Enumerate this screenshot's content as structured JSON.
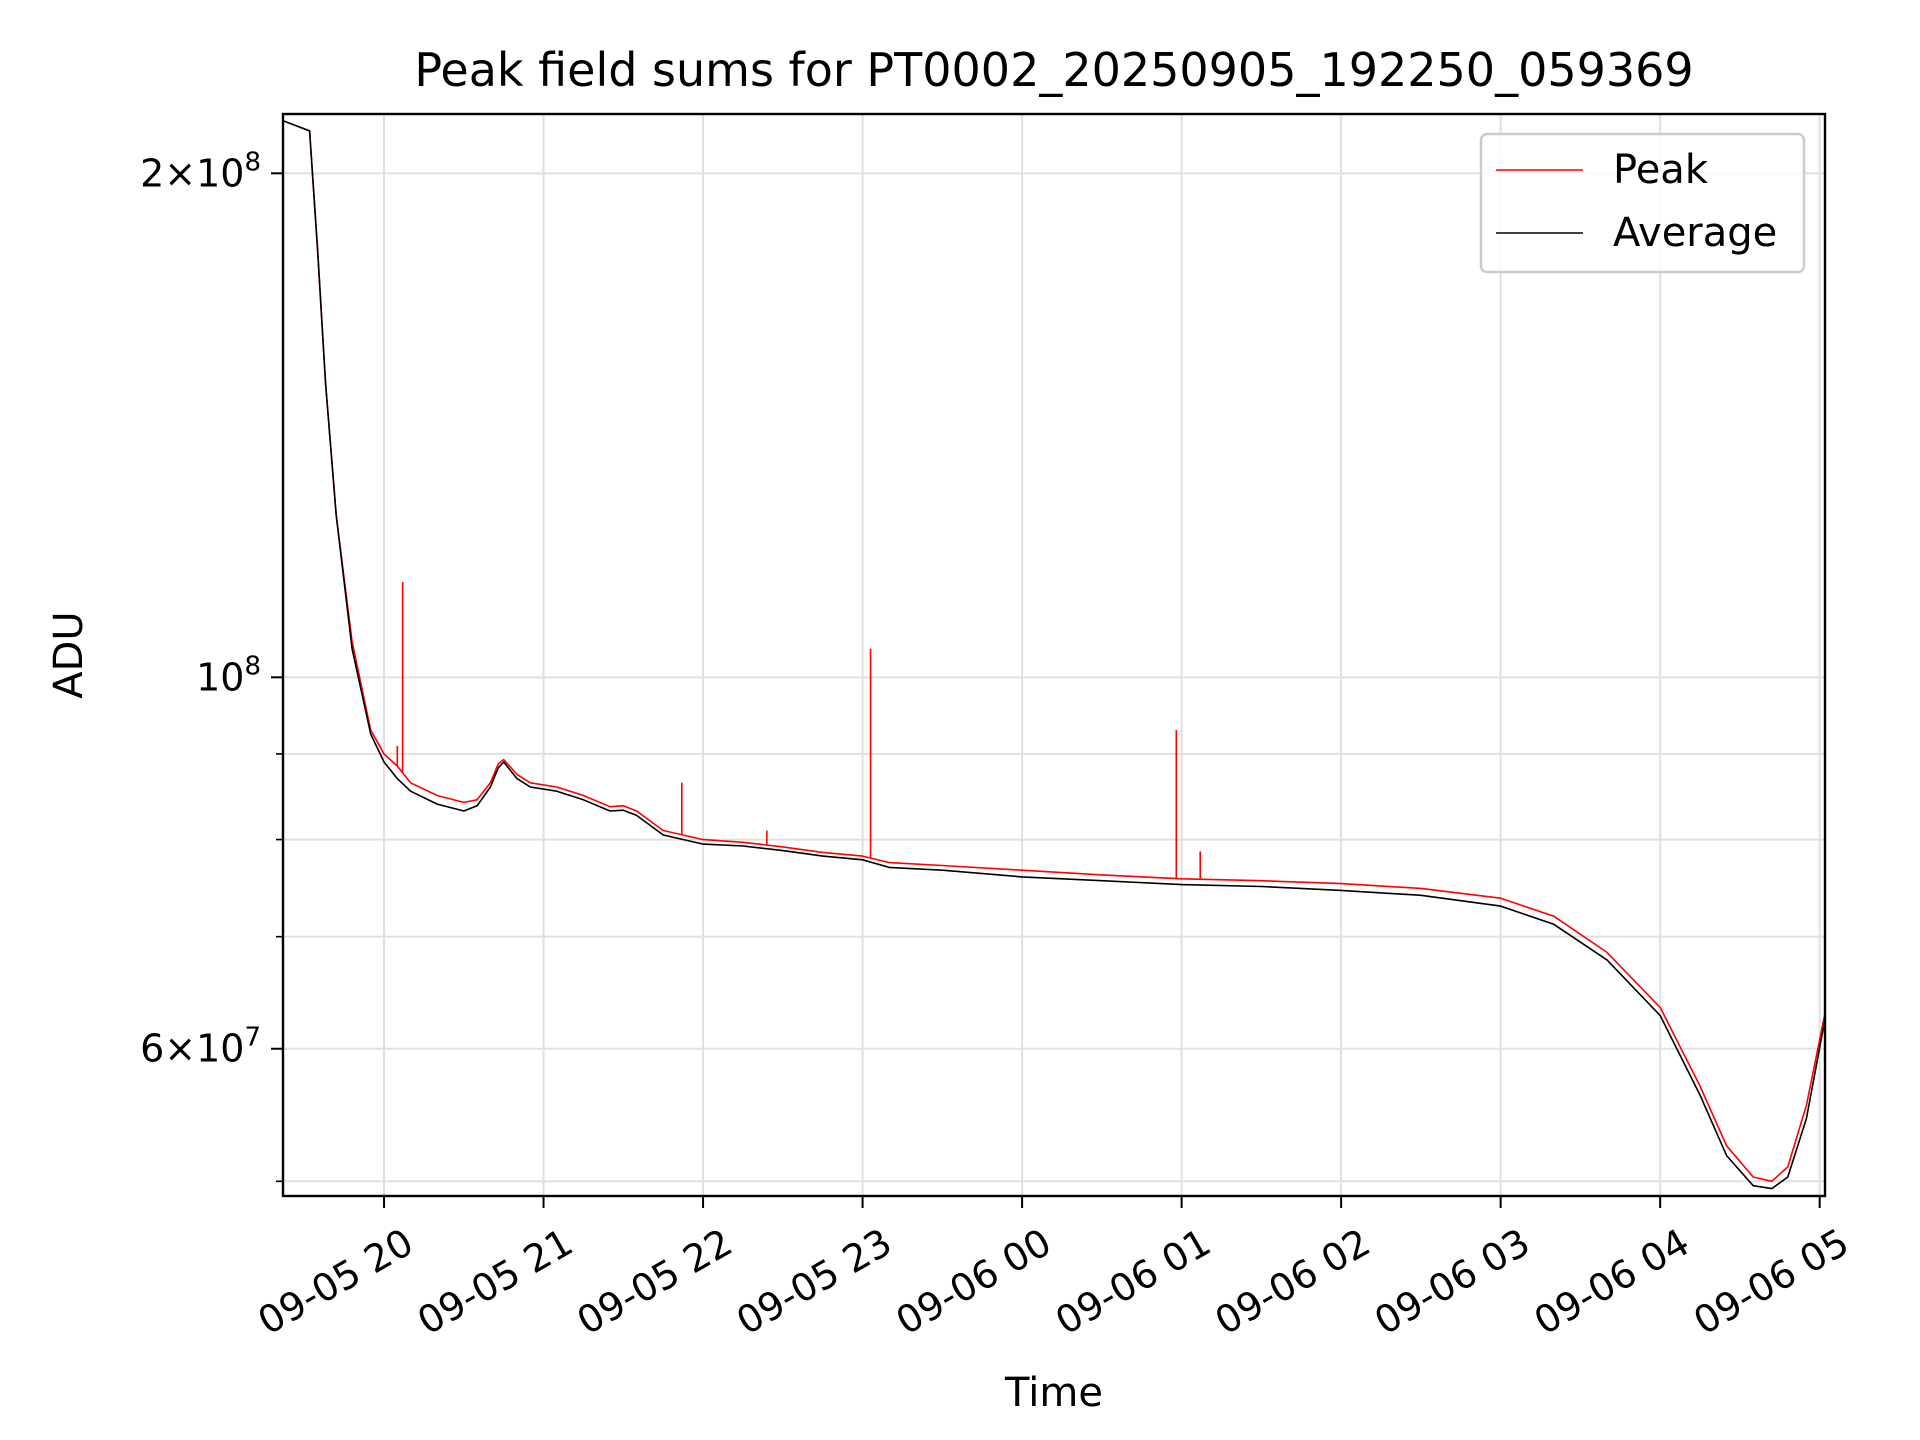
{
  "chart_data": {
    "type": "line",
    "title": "Peak field sums for PT0002_20250905_192250_059369",
    "xlabel": "Time",
    "ylabel": "ADU",
    "y_scale": "log",
    "ylim": [
      49000000,
      217000000
    ],
    "xlim": [
      "2025-09-05 19:22",
      "2025-09-06 05:02"
    ],
    "grid": true,
    "legend_position": "top-right",
    "x_ticks": [
      {
        "t": "2025-09-05 20:00",
        "label": "09-05 20"
      },
      {
        "t": "2025-09-05 21:00",
        "label": "09-05 21"
      },
      {
        "t": "2025-09-05 22:00",
        "label": "09-05 22"
      },
      {
        "t": "2025-09-05 23:00",
        "label": "09-05 23"
      },
      {
        "t": "2025-09-06 00:00",
        "label": "09-06 00"
      },
      {
        "t": "2025-09-06 01:00",
        "label": "09-06 01"
      },
      {
        "t": "2025-09-06 02:00",
        "label": "09-06 02"
      },
      {
        "t": "2025-09-06 03:00",
        "label": "09-06 03"
      },
      {
        "t": "2025-09-06 04:00",
        "label": "09-06 04"
      },
      {
        "t": "2025-09-06 05:00",
        "label": "09-06 05"
      }
    ],
    "y_ticks_major": [
      {
        "value": 60000000,
        "mantissa": "6",
        "exp": "7"
      },
      {
        "value": 100000000,
        "mantissa": "",
        "exp": "8"
      },
      {
        "value": 200000000,
        "mantissa": "2",
        "exp": "8"
      }
    ],
    "y_ticks_minor": [
      50000000,
      70000000,
      80000000,
      90000000
    ],
    "series": [
      {
        "name": "Peak",
        "color": "#ff0000",
        "points": [
          [
            "2025-09-05 19:22",
            215000000
          ],
          [
            "2025-09-05 19:32",
            212000000
          ],
          [
            "2025-09-05 19:35",
            180000000
          ],
          [
            "2025-09-05 19:38",
            150000000
          ],
          [
            "2025-09-05 19:42",
            125000000
          ],
          [
            "2025-09-05 19:48",
            105000000
          ],
          [
            "2025-09-05 19:55",
            93000000
          ],
          [
            "2025-09-05 20:00",
            90000000
          ],
          [
            "2025-09-05 20:05",
            88500000
          ],
          [
            "2025-09-05 20:10",
            86500000
          ],
          [
            "2025-09-05 20:20",
            85000000
          ],
          [
            "2025-09-05 20:30",
            84200000
          ],
          [
            "2025-09-05 20:35",
            84500000
          ],
          [
            "2025-09-05 20:40",
            86500000
          ],
          [
            "2025-09-05 20:43",
            88800000
          ],
          [
            "2025-09-05 20:45",
            89300000
          ],
          [
            "2025-09-05 20:50",
            87500000
          ],
          [
            "2025-09-05 20:55",
            86500000
          ],
          [
            "2025-09-05 21:05",
            86000000
          ],
          [
            "2025-09-05 21:15",
            85000000
          ],
          [
            "2025-09-05 21:25",
            83700000
          ],
          [
            "2025-09-05 21:30",
            83800000
          ],
          [
            "2025-09-05 21:35",
            83200000
          ],
          [
            "2025-09-05 21:45",
            81000000
          ],
          [
            "2025-09-05 22:00",
            80000000
          ],
          [
            "2025-09-05 22:15",
            79700000
          ],
          [
            "2025-09-05 22:30",
            79200000
          ],
          [
            "2025-09-05 22:45",
            78600000
          ],
          [
            "2025-09-05 23:00",
            78200000
          ],
          [
            "2025-09-05 23:10",
            77500000
          ],
          [
            "2025-09-05 23:30",
            77200000
          ],
          [
            "2025-09-06 00:00",
            76700000
          ],
          [
            "2025-09-06 00:30",
            76200000
          ],
          [
            "2025-09-06 01:00",
            75800000
          ],
          [
            "2025-09-06 01:30",
            75600000
          ],
          [
            "2025-09-06 02:00",
            75300000
          ],
          [
            "2025-09-06 02:30",
            74800000
          ],
          [
            "2025-09-06 03:00",
            73800000
          ],
          [
            "2025-09-06 03:20",
            72000000
          ],
          [
            "2025-09-06 03:40",
            68500000
          ],
          [
            "2025-09-06 04:00",
            63500000
          ],
          [
            "2025-09-06 04:15",
            57000000
          ],
          [
            "2025-09-06 04:25",
            52500000
          ],
          [
            "2025-09-06 04:35",
            50300000
          ],
          [
            "2025-09-06 04:42",
            50000000
          ],
          [
            "2025-09-06 04:48",
            51000000
          ],
          [
            "2025-09-06 04:55",
            55500000
          ],
          [
            "2025-09-06 05:02",
            63000000
          ]
        ],
        "spikes": [
          [
            "2025-09-05 20:05",
            91000000
          ],
          [
            "2025-09-05 20:07",
            114000000
          ],
          [
            "2025-09-05 21:09",
            85500000
          ],
          [
            "2025-09-05 21:52",
            86500000
          ],
          [
            "2025-09-05 22:24",
            81000000
          ],
          [
            "2025-09-05 23:03",
            104000000
          ],
          [
            "2025-09-06 00:58",
            93000000
          ],
          [
            "2025-09-06 01:07",
            78700000
          ]
        ]
      },
      {
        "name": "Average",
        "color": "#000000",
        "points": [
          [
            "2025-09-05 19:22",
            215000000
          ],
          [
            "2025-09-05 19:32",
            212000000
          ],
          [
            "2025-09-05 19:35",
            180000000
          ],
          [
            "2025-09-05 19:38",
            150000000
          ],
          [
            "2025-09-05 19:42",
            125000000
          ],
          [
            "2025-09-05 19:48",
            104000000
          ],
          [
            "2025-09-05 19:55",
            92500000
          ],
          [
            "2025-09-05 20:00",
            89000000
          ],
          [
            "2025-09-05 20:05",
            87000000
          ],
          [
            "2025-09-05 20:10",
            85500000
          ],
          [
            "2025-09-05 20:20",
            84000000
          ],
          [
            "2025-09-05 20:30",
            83200000
          ],
          [
            "2025-09-05 20:35",
            83800000
          ],
          [
            "2025-09-05 20:40",
            86000000
          ],
          [
            "2025-09-05 20:43",
            88300000
          ],
          [
            "2025-09-05 20:45",
            89000000
          ],
          [
            "2025-09-05 20:50",
            87000000
          ],
          [
            "2025-09-05 20:55",
            86000000
          ],
          [
            "2025-09-05 21:05",
            85500000
          ],
          [
            "2025-09-05 21:15",
            84500000
          ],
          [
            "2025-09-05 21:25",
            83200000
          ],
          [
            "2025-09-05 21:30",
            83300000
          ],
          [
            "2025-09-05 21:35",
            82700000
          ],
          [
            "2025-09-05 21:45",
            80500000
          ],
          [
            "2025-09-05 22:00",
            79500000
          ],
          [
            "2025-09-05 22:15",
            79300000
          ],
          [
            "2025-09-05 22:30",
            78800000
          ],
          [
            "2025-09-05 22:45",
            78200000
          ],
          [
            "2025-09-05 23:00",
            77800000
          ],
          [
            "2025-09-05 23:10",
            77000000
          ],
          [
            "2025-09-05 23:30",
            76700000
          ],
          [
            "2025-09-06 00:00",
            76000000
          ],
          [
            "2025-09-06 00:30",
            75600000
          ],
          [
            "2025-09-06 01:00",
            75200000
          ],
          [
            "2025-09-06 01:30",
            75000000
          ],
          [
            "2025-09-06 02:00",
            74600000
          ],
          [
            "2025-09-06 02:30",
            74100000
          ],
          [
            "2025-09-06 03:00",
            73000000
          ],
          [
            "2025-09-06 03:20",
            71200000
          ],
          [
            "2025-09-06 03:40",
            67800000
          ],
          [
            "2025-09-06 04:00",
            62800000
          ],
          [
            "2025-09-06 04:15",
            56300000
          ],
          [
            "2025-09-06 04:25",
            51800000
          ],
          [
            "2025-09-06 04:35",
            49700000
          ],
          [
            "2025-09-06 04:42",
            49500000
          ],
          [
            "2025-09-06 04:48",
            50300000
          ],
          [
            "2025-09-06 04:55",
            54500000
          ],
          [
            "2025-09-06 05:02",
            62500000
          ]
        ]
      }
    ]
  }
}
